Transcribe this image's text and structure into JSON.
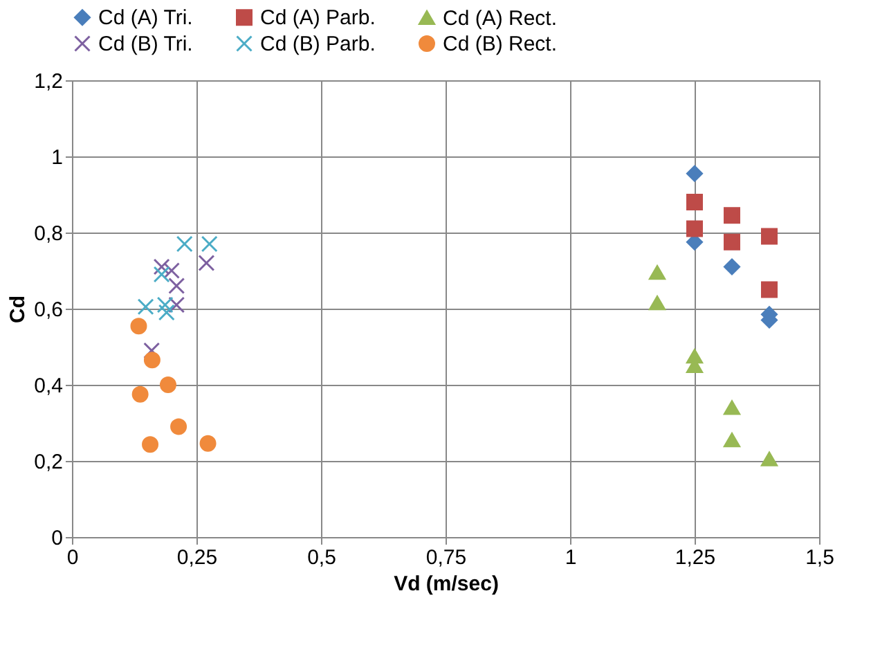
{
  "chart_data": {
    "type": "scatter",
    "xlabel": "Vd (m/sec)",
    "ylabel": "Cd",
    "grid": true,
    "legend": "top",
    "xlim": [
      0,
      1.5
    ],
    "ylim": [
      0,
      1.2
    ],
    "xticks": [
      0,
      {
        "value": 0.25,
        "label": "0,25"
      },
      {
        "value": 0.5,
        "label": "0,5"
      },
      {
        "value": 0.75,
        "label": "0,75"
      },
      1,
      {
        "value": 1.25,
        "label": "1,25"
      },
      {
        "value": 1.5,
        "label": "1,5"
      }
    ],
    "yticks": [
      0,
      {
        "value": 0.2,
        "label": "0,2"
      },
      {
        "value": 0.4,
        "label": "0,4"
      },
      {
        "value": 0.6,
        "label": "0,6"
      },
      {
        "value": 0.8,
        "label": "0,8"
      },
      1,
      {
        "value": 1.2,
        "label": "1,2"
      }
    ],
    "series": [
      {
        "name": "Cd (A) Tri.",
        "color": "#4a7ebb",
        "marker": "diamond",
        "x": [
          1.25,
          1.25,
          1.325,
          1.4,
          1.4
        ],
        "values": [
          0.955,
          0.775,
          0.71,
          0.585,
          0.57
        ]
      },
      {
        "name": "Cd (A) Parb.",
        "color": "#be4b48",
        "marker": "square",
        "x": [
          1.25,
          1.25,
          1.325,
          1.325,
          1.4,
          1.4
        ],
        "values": [
          0.88,
          0.81,
          0.845,
          0.775,
          0.79,
          0.65
        ]
      },
      {
        "name": "Cd (A) Rect.",
        "color": "#98b954",
        "marker": "triangle",
        "x": [
          1.175,
          1.175,
          1.25,
          1.25,
          1.325,
          1.325,
          1.4
        ],
        "values": [
          0.695,
          0.615,
          0.475,
          0.45,
          0.34,
          0.255,
          0.205
        ]
      },
      {
        "name": "Cd (B) Tri.",
        "color": "#7d60a0",
        "marker": "cross",
        "x": [
          0.18,
          0.2,
          0.21,
          0.21,
          0.27,
          0.16
        ],
        "values": [
          0.71,
          0.7,
          0.66,
          0.61,
          0.72,
          0.49
        ]
      },
      {
        "name": "Cd (B) Parb.",
        "color": "#4bacc6",
        "marker": "cross",
        "x": [
          0.226,
          0.276,
          0.18,
          0.148,
          0.187,
          0.19
        ],
        "values": [
          0.77,
          0.77,
          0.69,
          0.605,
          0.61,
          0.59
        ]
      },
      {
        "name": "Cd (B) Rect.",
        "color": "#f08a3c",
        "marker": "circle",
        "x": [
          0.134,
          0.161,
          0.193,
          0.137,
          0.214,
          0.157,
          0.273
        ],
        "values": [
          0.554,
          0.465,
          0.4,
          0.375,
          0.29,
          0.243,
          0.246
        ]
      }
    ]
  }
}
